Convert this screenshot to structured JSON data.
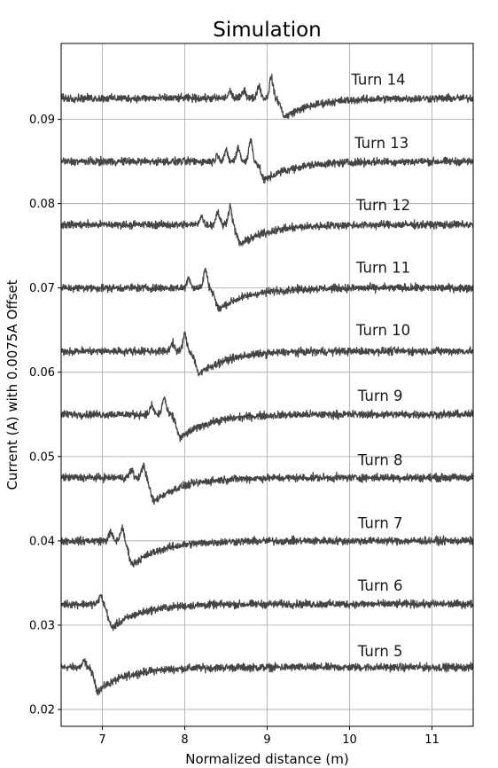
{
  "chart_data": {
    "type": "line",
    "title": "Simulation",
    "xlabel": "Normalized distance (m)",
    "ylabel": "Current (A) with 0.0075A Offset",
    "xlim": [
      6.5,
      11.5
    ],
    "ylim": [
      0.018,
      0.099
    ],
    "x_ticks": [
      7,
      8,
      9,
      10,
      11
    ],
    "x_tick_labels": [
      "7",
      "8",
      "9",
      "10",
      "11"
    ],
    "y_ticks": [
      0.02,
      0.03,
      0.04,
      0.05,
      0.06,
      0.07,
      0.08,
      0.09
    ],
    "y_tick_labels": [
      "0.02",
      "0.03",
      "0.04",
      "0.05",
      "0.06",
      "0.07",
      "0.08",
      "0.09"
    ],
    "grid": true,
    "line_color": "#444444",
    "series": [
      {
        "name": "Turn 5",
        "label_x": 10.1,
        "label_y": 0.0263,
        "baseline": 0.025,
        "trough_x": 6.95,
        "trough_y": 0.0222,
        "peaks": [
          [
            6.78,
            0.0257
          ]
        ]
      },
      {
        "name": "Turn 6",
        "label_x": 10.1,
        "label_y": 0.0341,
        "baseline": 0.0325,
        "trough_x": 7.12,
        "trough_y": 0.0297,
        "peaks": [
          [
            6.98,
            0.0335
          ]
        ]
      },
      {
        "name": "Turn 7",
        "label_x": 10.1,
        "label_y": 0.0415,
        "baseline": 0.04,
        "trough_x": 7.37,
        "trough_y": 0.0372,
        "peaks": [
          [
            7.1,
            0.041
          ],
          [
            7.24,
            0.0415
          ]
        ]
      },
      {
        "name": "Turn 8",
        "label_x": 10.1,
        "label_y": 0.049,
        "baseline": 0.0475,
        "trough_x": 7.63,
        "trough_y": 0.0447,
        "peaks": [
          [
            7.35,
            0.0484
          ],
          [
            7.5,
            0.049
          ]
        ]
      },
      {
        "name": "Turn 9",
        "label_x": 10.1,
        "label_y": 0.0566,
        "baseline": 0.055,
        "trough_x": 7.95,
        "trough_y": 0.0522,
        "peaks": [
          [
            7.6,
            0.056
          ],
          [
            7.75,
            0.057
          ]
        ]
      },
      {
        "name": "Turn 10",
        "label_x": 10.08,
        "label_y": 0.0644,
        "baseline": 0.0625,
        "trough_x": 8.18,
        "trough_y": 0.0598,
        "peaks": [
          [
            7.85,
            0.0635
          ],
          [
            8.0,
            0.0645
          ]
        ]
      },
      {
        "name": "Turn 11",
        "label_x": 10.08,
        "label_y": 0.0718,
        "baseline": 0.07,
        "trough_x": 8.42,
        "trough_y": 0.0675,
        "peaks": [
          [
            8.05,
            0.0712
          ],
          [
            8.25,
            0.0722
          ]
        ]
      },
      {
        "name": "Turn 12",
        "label_x": 10.08,
        "label_y": 0.0792,
        "baseline": 0.0775,
        "trough_x": 8.68,
        "trough_y": 0.0752,
        "peaks": [
          [
            8.2,
            0.0785
          ],
          [
            8.4,
            0.079
          ],
          [
            8.55,
            0.0797
          ]
        ]
      },
      {
        "name": "Turn 13",
        "label_x": 10.06,
        "label_y": 0.0866,
        "baseline": 0.085,
        "trough_x": 8.97,
        "trough_y": 0.0828,
        "peaks": [
          [
            8.4,
            0.0858
          ],
          [
            8.5,
            0.0862
          ],
          [
            8.65,
            0.0866
          ],
          [
            8.8,
            0.0875
          ]
        ]
      },
      {
        "name": "Turn 14",
        "label_x": 10.02,
        "label_y": 0.0941,
        "baseline": 0.0925,
        "trough_x": 9.22,
        "trough_y": 0.0903,
        "peaks": [
          [
            8.55,
            0.0933
          ],
          [
            8.72,
            0.0935
          ],
          [
            8.9,
            0.094
          ],
          [
            9.05,
            0.095
          ]
        ]
      }
    ]
  }
}
